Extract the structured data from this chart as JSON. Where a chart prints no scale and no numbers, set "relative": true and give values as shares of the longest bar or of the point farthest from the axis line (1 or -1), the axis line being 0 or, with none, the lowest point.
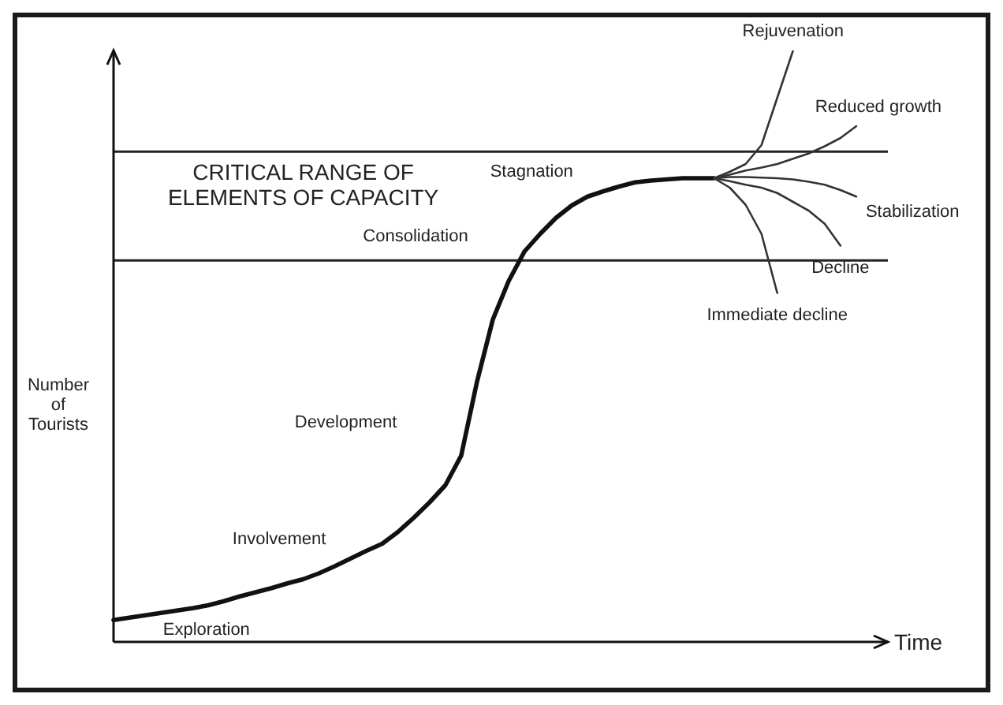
{
  "chart_data": {
    "type": "line",
    "relative": true,
    "xlabel": "Time",
    "ylabel": "Number\nof\nTourists",
    "categories": [
      null,
      null,
      null,
      null,
      null,
      null,
      null,
      null,
      null,
      null,
      null,
      null,
      null,
      null,
      null,
      null,
      null,
      null,
      null,
      null,
      null,
      null,
      null,
      null,
      null,
      null,
      null,
      null,
      null,
      null,
      null,
      null,
      null,
      null,
      null,
      null,
      null,
      null,
      null,
      null,
      null,
      null,
      null,
      null,
      null,
      null,
      null,
      null,
      null,
      null
    ],
    "series": [
      {
        "color": "#111111",
        "values": [
          0.037,
          0.041,
          0.045,
          0.049,
          0.053,
          0.057,
          0.062,
          0.069,
          0.077,
          0.084,
          0.091,
          0.099,
          0.106,
          0.116,
          0.128,
          0.141,
          0.154,
          0.166,
          0.186,
          0.21,
          0.236,
          0.265,
          0.315,
          0.44,
          0.545,
          0.61,
          0.66,
          0.69,
          0.717,
          0.738,
          0.753,
          0.762,
          0.77,
          0.777,
          0.78,
          0.782,
          0.784,
          0.784,
          0.784,
          null,
          null,
          null,
          null,
          null,
          null,
          null,
          null,
          null,
          null,
          null
        ]
      },
      {
        "name": "Rejuvenation",
        "color": "#333333",
        "values": [
          null,
          null,
          null,
          null,
          null,
          null,
          null,
          null,
          null,
          null,
          null,
          null,
          null,
          null,
          null,
          null,
          null,
          null,
          null,
          null,
          null,
          null,
          null,
          null,
          null,
          null,
          null,
          null,
          null,
          null,
          null,
          null,
          null,
          null,
          null,
          null,
          null,
          null,
          0.784,
          0.795,
          0.808,
          0.84,
          0.92,
          1.0,
          null,
          null,
          null,
          null,
          null,
          null
        ]
      },
      {
        "name": "Reduced growth",
        "color": "#333333",
        "values": [
          null,
          null,
          null,
          null,
          null,
          null,
          null,
          null,
          null,
          null,
          null,
          null,
          null,
          null,
          null,
          null,
          null,
          null,
          null,
          null,
          null,
          null,
          null,
          null,
          null,
          null,
          null,
          null,
          null,
          null,
          null,
          null,
          null,
          null,
          null,
          null,
          null,
          null,
          0.784,
          0.79,
          0.797,
          0.802,
          0.808,
          0.817,
          0.826,
          0.838,
          0.852,
          0.872,
          null,
          null
        ]
      },
      {
        "name": "Stabilization",
        "color": "#333333",
        "values": [
          null,
          null,
          null,
          null,
          null,
          null,
          null,
          null,
          null,
          null,
          null,
          null,
          null,
          null,
          null,
          null,
          null,
          null,
          null,
          null,
          null,
          null,
          null,
          null,
          null,
          null,
          null,
          null,
          null,
          null,
          null,
          null,
          null,
          null,
          null,
          null,
          null,
          null,
          0.784,
          0.786,
          0.786,
          0.785,
          0.784,
          0.782,
          0.778,
          0.773,
          0.764,
          0.753,
          null,
          null
        ]
      },
      {
        "name": "Decline",
        "color": "#333333",
        "values": [
          null,
          null,
          null,
          null,
          null,
          null,
          null,
          null,
          null,
          null,
          null,
          null,
          null,
          null,
          null,
          null,
          null,
          null,
          null,
          null,
          null,
          null,
          null,
          null,
          null,
          null,
          null,
          null,
          null,
          null,
          null,
          null,
          null,
          null,
          null,
          null,
          null,
          null,
          0.784,
          0.779,
          0.773,
          0.768,
          0.759,
          0.744,
          0.729,
          0.707,
          0.67,
          null,
          null,
          null
        ]
      },
      {
        "name": "Immediate decline",
        "color": "#333333",
        "values": [
          null,
          null,
          null,
          null,
          null,
          null,
          null,
          null,
          null,
          null,
          null,
          null,
          null,
          null,
          null,
          null,
          null,
          null,
          null,
          null,
          null,
          null,
          null,
          null,
          null,
          null,
          null,
          null,
          null,
          null,
          null,
          null,
          null,
          null,
          null,
          null,
          null,
          null,
          0.784,
          0.768,
          0.739,
          0.69,
          0.59,
          null,
          null,
          null,
          null,
          null,
          null,
          null
        ]
      }
    ],
    "ref_lines": [
      {
        "axis": "y",
        "value": 0.829,
        "color": "#222222"
      },
      {
        "axis": "y",
        "value": 0.645,
        "color": "#222222"
      }
    ],
    "annotations": [
      "CRITICAL RANGE OF\nELEMENTS OF CAPACITY",
      "Exploration",
      "Involvement",
      "Development",
      "Consolidation",
      "Stagnation"
    ]
  }
}
